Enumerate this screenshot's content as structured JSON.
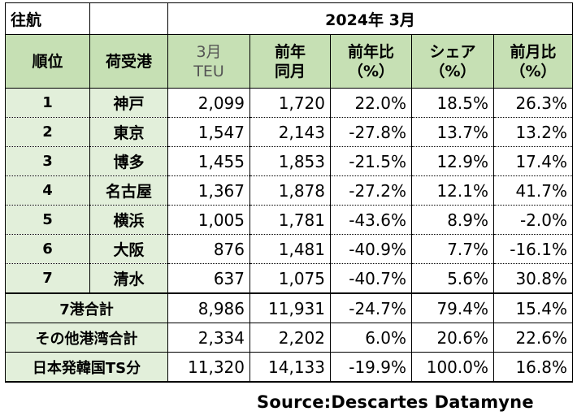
{
  "table": {
    "direction": "往航",
    "period": "2024年 3月",
    "headers": {
      "rank": "順位",
      "port": "荷受港",
      "teu_line1": "3月",
      "teu_line2": "TEU",
      "prev_line1": "前年",
      "prev_line2": "同月",
      "yoy_line1": "前年比",
      "yoy_line2": "（%）",
      "share_line1": "シェア",
      "share_line2": "（%）",
      "mom_line1": "前月比",
      "mom_line2": "（%）"
    },
    "rows": [
      {
        "rank": "1",
        "port": "神戸",
        "teu": "2,099",
        "prev": "1,720",
        "yoy": "22.0%",
        "share": "18.5%",
        "mom": "26.3%"
      },
      {
        "rank": "2",
        "port": "東京",
        "teu": "1,547",
        "prev": "2,143",
        "yoy": "-27.8%",
        "share": "13.7%",
        "mom": "13.2%"
      },
      {
        "rank": "3",
        "port": "博多",
        "teu": "1,455",
        "prev": "1,853",
        "yoy": "-21.5%",
        "share": "12.9%",
        "mom": "17.4%"
      },
      {
        "rank": "4",
        "port": "名古屋",
        "teu": "1,367",
        "prev": "1,878",
        "yoy": "-27.2%",
        "share": "12.1%",
        "mom": "41.7%"
      },
      {
        "rank": "5",
        "port": "横浜",
        "teu": "1,005",
        "prev": "1,781",
        "yoy": "-43.6%",
        "share": "8.9%",
        "mom": "-2.0%"
      },
      {
        "rank": "6",
        "port": "大阪",
        "teu": "876",
        "prev": "1,481",
        "yoy": "-40.9%",
        "share": "7.7%",
        "mom": "-16.1%"
      },
      {
        "rank": "7",
        "port": "清水",
        "teu": "637",
        "prev": "1,075",
        "yoy": "-40.7%",
        "share": "5.6%",
        "mom": "30.8%"
      }
    ],
    "totals": [
      {
        "label": "7港合計",
        "teu": "8,986",
        "prev": "11,931",
        "yoy": "-24.7%",
        "share": "79.4%",
        "mom": "15.4%"
      },
      {
        "label": "その他港湾合計",
        "teu": "2,334",
        "prev": "2,202",
        "yoy": "6.0%",
        "share": "20.6%",
        "mom": "22.6%"
      },
      {
        "label": "日本発韓国TS分",
        "teu": "11,320",
        "prev": "14,133",
        "yoy": "-19.9%",
        "share": "100.0%",
        "mom": "16.8%"
      }
    ]
  },
  "source": "Source:Descartes  Datamyne",
  "colors": {
    "header_bg": "#c6e0b4",
    "label_bg": "#e2efda"
  }
}
